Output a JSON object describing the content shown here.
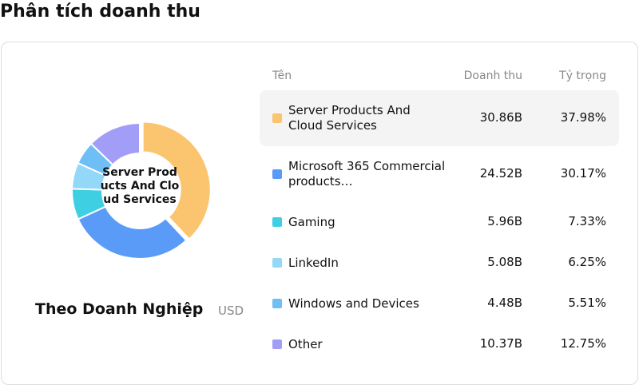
{
  "page_title": "Phân tích doanh thu",
  "chart_data": {
    "type": "donut",
    "title": "Theo Doanh Nghiệp",
    "unit": "USD",
    "table_headers": [
      "Tên",
      "Doanh thu",
      "Tỷ trọng"
    ],
    "categories": [
      "Server Products And Cloud Services",
      "Microsoft 365 Commercial products…",
      "Gaming",
      "LinkedIn",
      "Windows and Devices",
      "Other"
    ],
    "values": [
      37.98,
      30.17,
      7.33,
      6.25,
      5.51,
      12.75
    ],
    "value_labels": [
      "37.98%",
      "30.17%",
      "7.33%",
      "6.25%",
      "5.51%",
      "12.75%"
    ],
    "revenue": [
      30.86,
      24.52,
      5.96,
      5.08,
      4.48,
      10.37
    ],
    "revenue_labels": [
      "30.86B",
      "24.52B",
      "5.96B",
      "5.08B",
      "4.48B",
      "10.37B"
    ],
    "colors": [
      "#fbc46e",
      "#5b9bf8",
      "#3ecfe3",
      "#93d7f9",
      "#6fbef5",
      "#a29ef8"
    ],
    "highlighted": 0
  }
}
